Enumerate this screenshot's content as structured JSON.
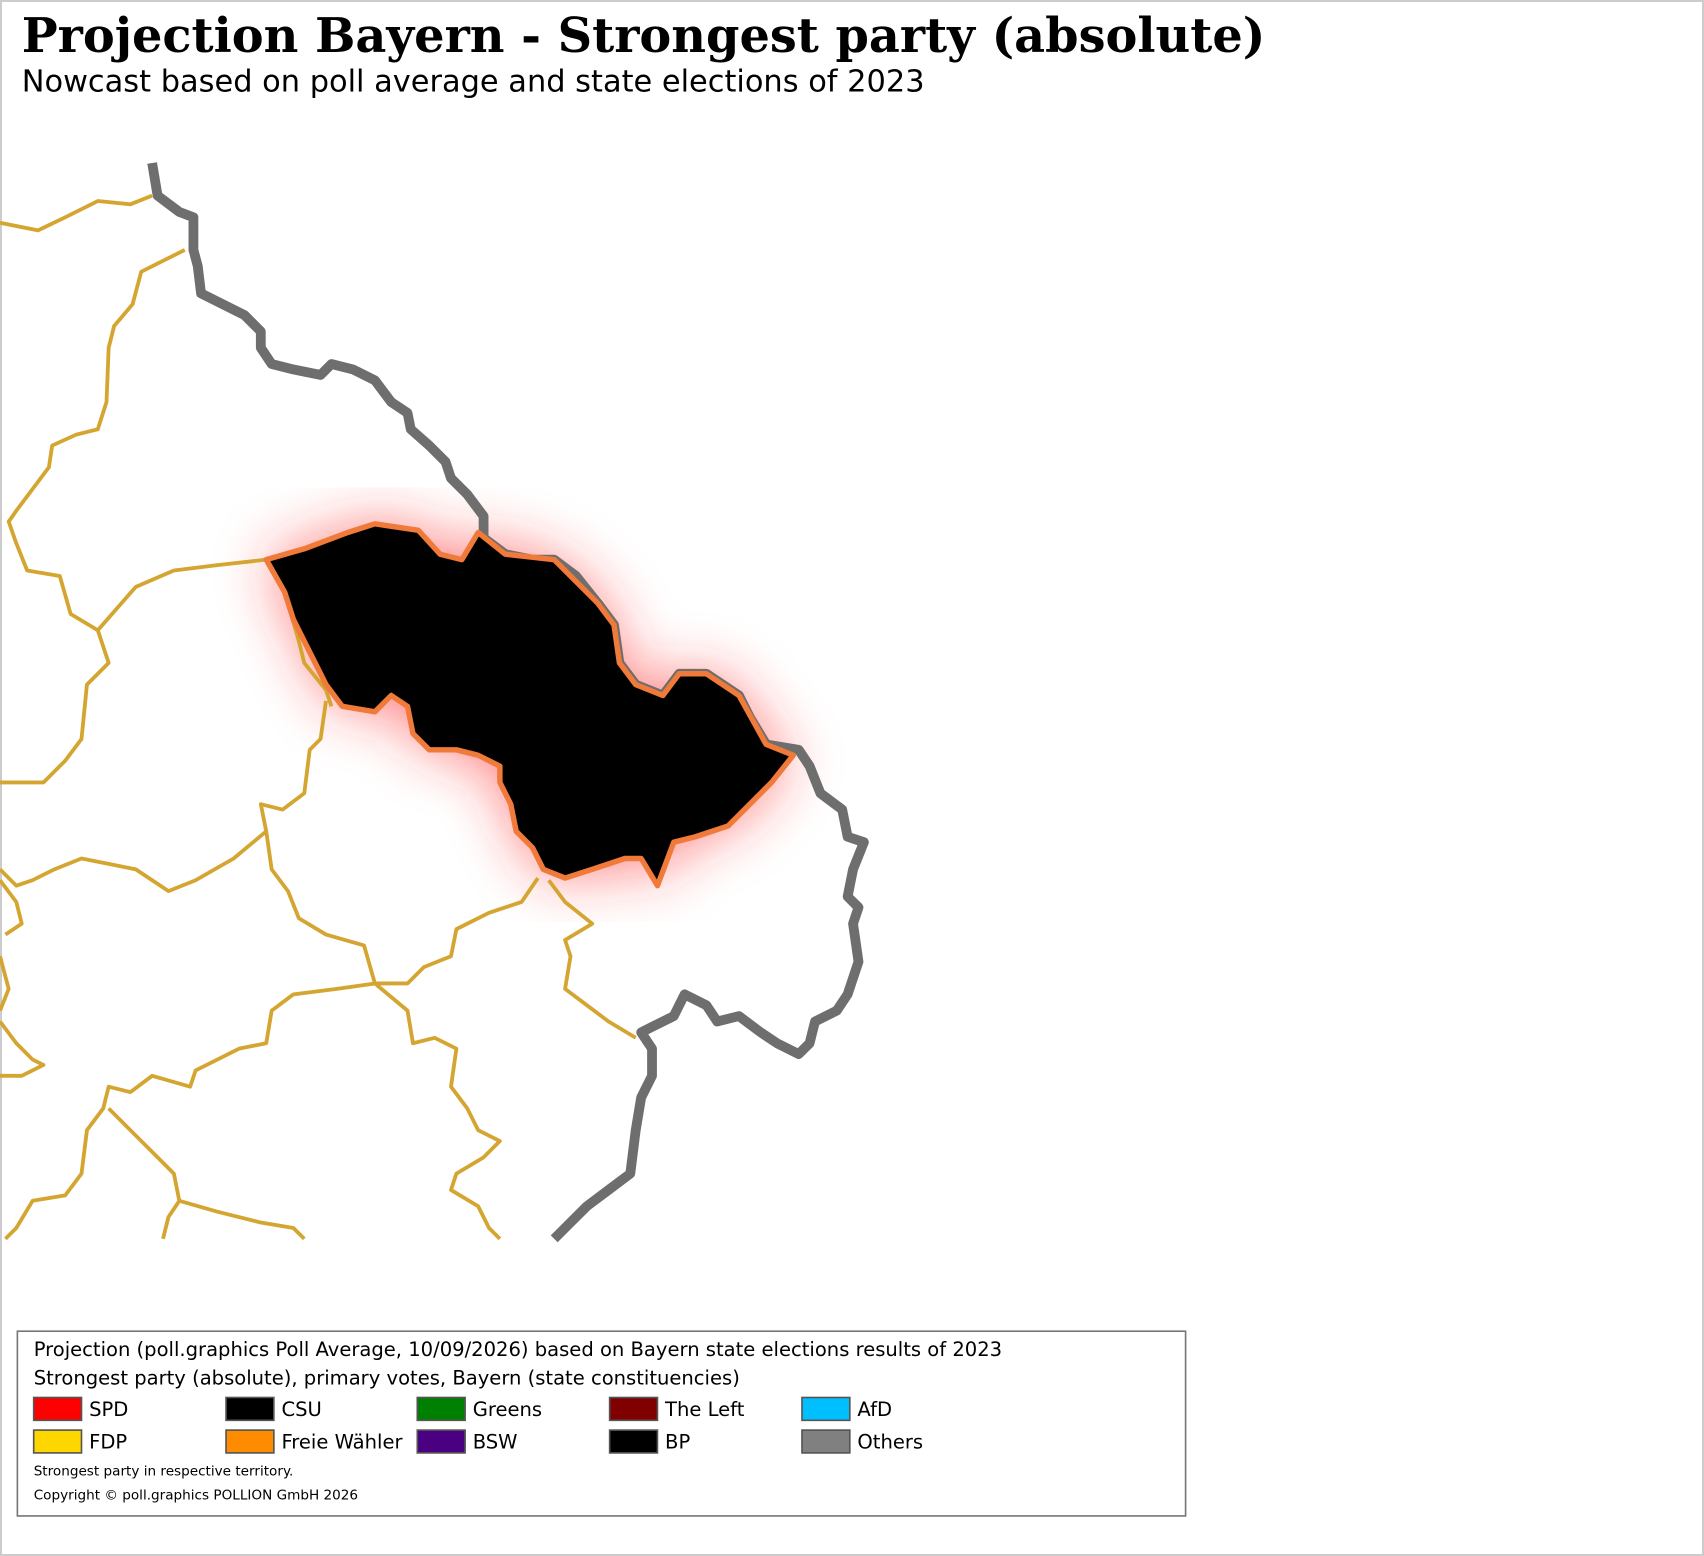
{
  "title": "Projection Bayern - Strongest party (absolute)",
  "subtitle": "Nowcast based on poll average and state elections of 2023",
  "legend": {
    "heading": "Projection (poll.graphics Poll Average, 10/09/2026) based on Bayern state elections results of 2023",
    "subheading": "Strongest party (absolute), primary votes, Bayern (state constituencies)",
    "entries": [
      {
        "name": "SPD",
        "color": "#ff0000"
      },
      {
        "name": "CSU",
        "color": "#000000"
      },
      {
        "name": "Greens",
        "color": "#008000"
      },
      {
        "name": "The Left",
        "color": "#800000"
      },
      {
        "name": "AfD",
        "color": "#00bfff"
      },
      {
        "name": "FDP",
        "color": "#ffd700"
      },
      {
        "name": "Freie Wähler",
        "color": "#ff8c00"
      },
      {
        "name": "BSW",
        "color": "#4b0082"
      },
      {
        "name": "BP",
        "color": "#000000"
      },
      {
        "name": "Others",
        "color": "#808080"
      }
    ],
    "note": "Strongest party in respective territory.",
    "copyright": "Copyright © poll.graphics POLLION GmbH 2026"
  }
}
